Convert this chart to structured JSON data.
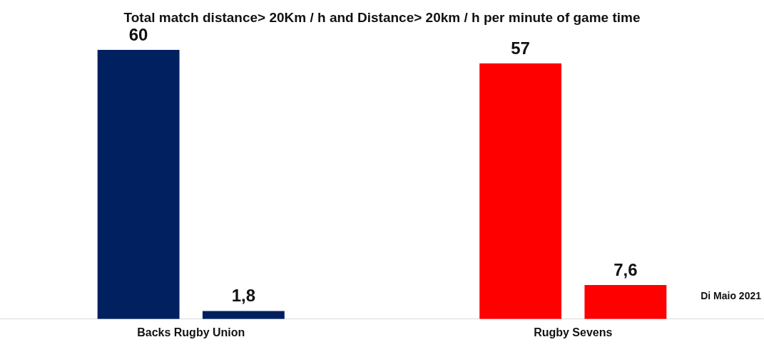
{
  "chart_data": {
    "type": "bar",
    "title": "Total match distance> 20Km / h and Distance> 20km / h per minute of game time",
    "categories": [
      "Backs Rugby Union",
      "Rugby Sevens"
    ],
    "series": [
      {
        "colors": [
          "#002060",
          "#ff0000"
        ],
        "values": [
          60,
          57
        ],
        "value_labels": [
          "60",
          "57"
        ]
      },
      {
        "colors": [
          "#002060",
          "#ff0000"
        ],
        "values": [
          1.8,
          7.6
        ],
        "value_labels": [
          "1,8",
          "7,6"
        ]
      }
    ],
    "annotations": [
      "Di Maio 2021"
    ],
    "grid": false,
    "legend": false
  }
}
